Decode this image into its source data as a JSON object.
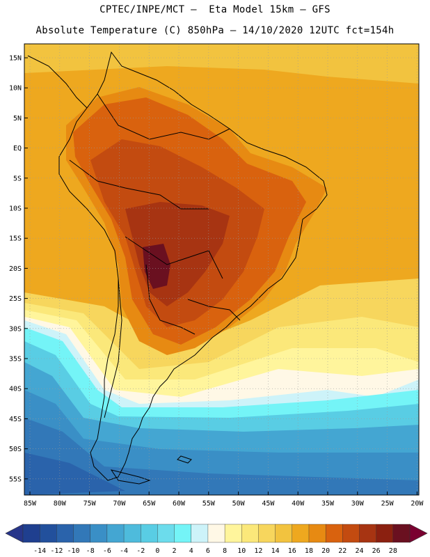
{
  "header": {
    "line1": "CPTEC/INPE/MCT –  Eta Model 15km – GFS",
    "line2": "Absolute Temperature (C) 850hPa – 14/10/2020 12UTC fct=154h"
  },
  "map": {
    "lat_labels": [
      "15N",
      "10N",
      "5N",
      "EQ",
      "5S",
      "10S",
      "15S",
      "20S",
      "25S",
      "30S",
      "35S",
      "40S",
      "45S",
      "50S",
      "55S"
    ],
    "lon_labels": [
      "85W",
      "80W",
      "75W",
      "70W",
      "65W",
      "60W",
      "55W",
      "50W",
      "45W",
      "40W",
      "35W",
      "30W",
      "25W",
      "20W"
    ]
  },
  "colorbar": {
    "tick_labels": [
      "-14",
      "-12",
      "-10",
      "-8",
      "-6",
      "-4",
      "-2",
      "0",
      "2",
      "4",
      "6",
      "8",
      "10",
      "12",
      "14",
      "16",
      "18",
      "20",
      "22",
      "24",
      "26",
      "28"
    ],
    "colors": [
      "#1f3f8f",
      "#22509c",
      "#2a63ab",
      "#3278b8",
      "#3a8fc6",
      "#44a6d2",
      "#4ebbdc",
      "#59cde4",
      "#6cdcec",
      "#74f4f7",
      "#cdf3f9",
      "#fff8e6",
      "#fff59c",
      "#fbe87a",
      "#f7d65d",
      "#f2c33f",
      "#eea81f",
      "#e78a12",
      "#d9620e",
      "#c34b10",
      "#a73412",
      "#8b2010",
      "#6a1020"
    ],
    "left_arrow_color": "#27358a",
    "right_arrow_color": "#7a0030"
  }
}
